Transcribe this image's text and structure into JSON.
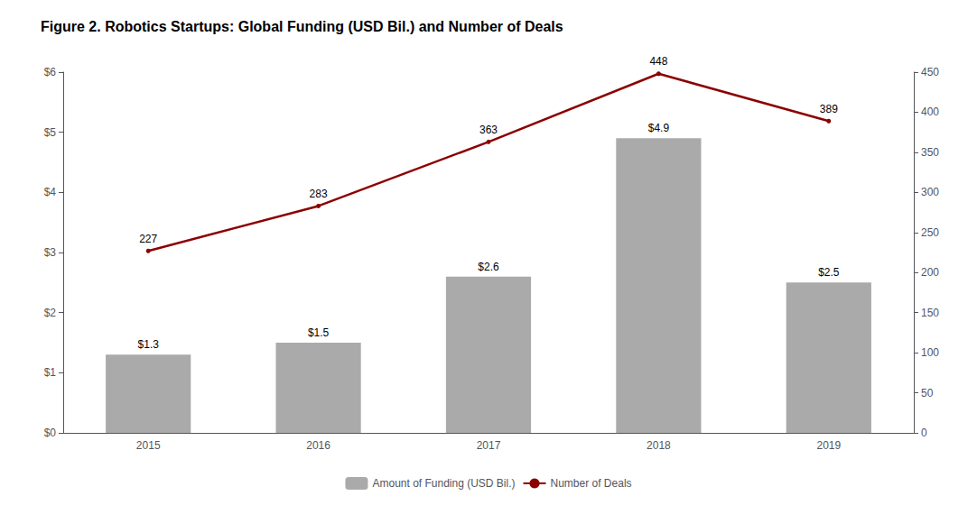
{
  "chart_data": {
    "type": "bar",
    "title": "Figure 2. Robotics Startups: Global Funding (USD Bil.) and Number of Deals",
    "categories": [
      "2015",
      "2016",
      "2017",
      "2018",
      "2019"
    ],
    "series": [
      {
        "name": "Amount of Funding (USD Bil.)",
        "type": "bar",
        "color": "#aaaaaa",
        "values": [
          1.3,
          1.5,
          2.6,
          4.9,
          2.5
        ],
        "value_labels": [
          "$1.3",
          "$1.5",
          "$2.6",
          "$4.9",
          "$2.5"
        ],
        "data_labels": true
      },
      {
        "name": "Number of Deals",
        "type": "line",
        "color": "#8b0000",
        "axis": "y2",
        "values": [
          227,
          283,
          363,
          448,
          389
        ],
        "data_labels": true
      }
    ],
    "ylim": [
      0,
      6
    ],
    "yticks": [
      {
        "value": 0,
        "label": "$0"
      },
      {
        "value": 1,
        "label": "$1"
      },
      {
        "value": 2,
        "label": "$2"
      },
      {
        "value": 3,
        "label": "$3"
      },
      {
        "value": 4,
        "label": "$4"
      },
      {
        "value": 5,
        "label": "$5"
      },
      {
        "value": 6,
        "label": "$6"
      }
    ],
    "y2lim": [
      0,
      450
    ],
    "y2ticks": [
      0,
      50,
      100,
      150,
      200,
      250,
      300,
      350,
      400,
      450
    ],
    "grid": false,
    "legend": "bottom"
  }
}
